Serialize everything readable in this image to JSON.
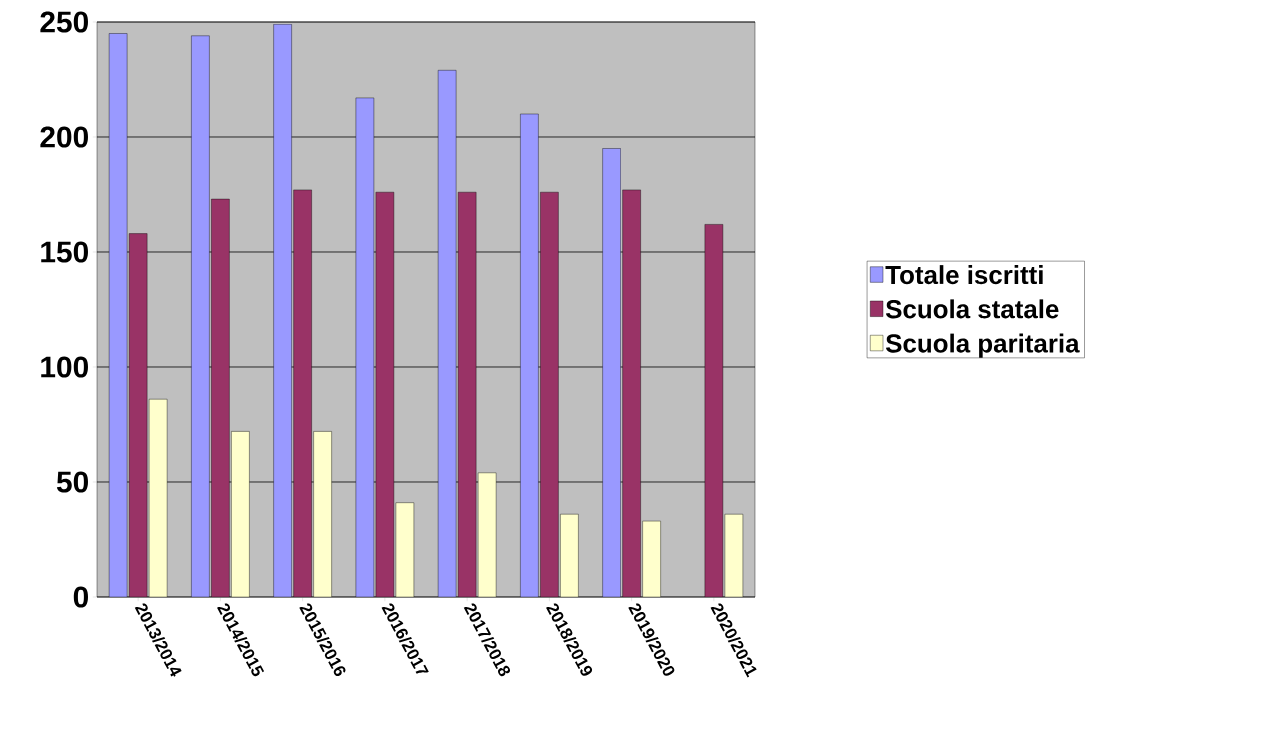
{
  "chart_data": {
    "type": "bar",
    "categories": [
      "2013/2014",
      "2014/2015",
      "2015/2016",
      "2016/2017",
      "2017/2018",
      "2018/2019",
      "2019/2020",
      "2020/2021"
    ],
    "series": [
      {
        "name": "Totale iscritti",
        "color": "#9999ff",
        "values": [
          245,
          244,
          249,
          217,
          229,
          210,
          195,
          null
        ]
      },
      {
        "name": "Scuola statale",
        "color": "#993366",
        "values": [
          158,
          173,
          177,
          176,
          176,
          176,
          177,
          162
        ]
      },
      {
        "name": "Scuola paritaria",
        "color": "#ffffcc",
        "values": [
          86,
          72,
          72,
          41,
          54,
          36,
          33,
          36
        ]
      }
    ],
    "ylim": [
      0,
      250
    ],
    "yticks": [
      0,
      50,
      100,
      150,
      200,
      250
    ],
    "grid": "y",
    "legend": "right"
  }
}
